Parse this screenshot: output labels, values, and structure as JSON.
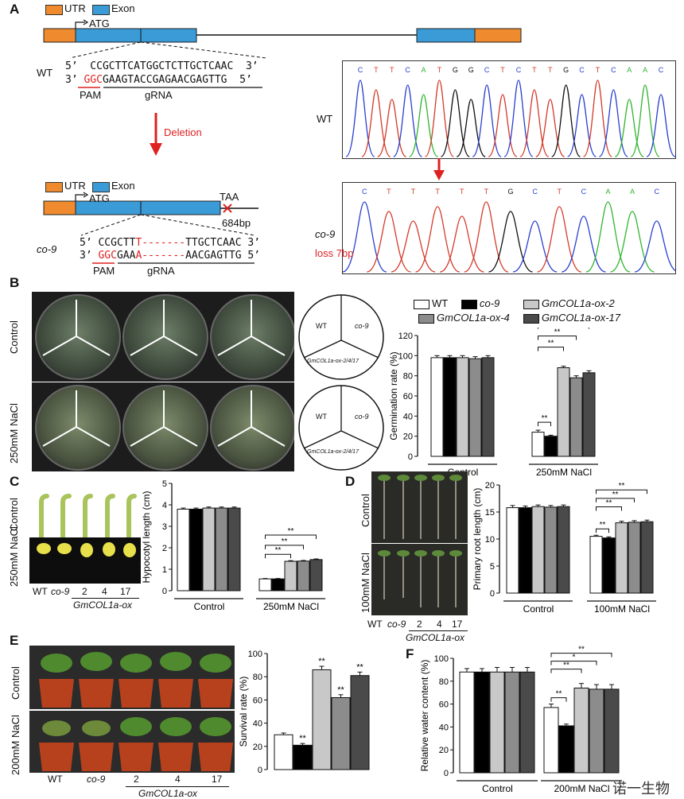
{
  "panel_labels": {
    "a": "A",
    "b": "B",
    "c": "C",
    "d": "D",
    "e": "E",
    "f": "F"
  },
  "gene_legend": {
    "utr": "UTR",
    "exon": "Exon",
    "atg": "ATG",
    "taa": "TAA",
    "bp": "684bp"
  },
  "wt_seq": {
    "label": "WT",
    "top": "5’  CCGCTTCATGGCTCTTGCTCAAC  3’",
    "bot_prefix": "3’ ",
    "pam": "GGC",
    "bot_rest": "GAAGTACCGAGAACGAGTTG  5’",
    "pam_label": "PAM",
    "grna_label": "gRNA"
  },
  "deletion_label": "Deletion",
  "co9_seq": {
    "label": "co-9",
    "top_a": "5’ CCGCTT",
    "top_del": "T-------",
    "top_b": "TTGCTCAAC 3’",
    "bot_prefix": "3’ ",
    "pam": "GGC",
    "bot_mid": "GAA",
    "bot_del": "A-------",
    "bot_rest": "AACGAGTTG 5’",
    "pam_label": "PAM",
    "grna_label": "gRNA"
  },
  "chrom_wt": {
    "label": "WT",
    "bases": [
      "C",
      "T",
      "T",
      "C",
      "A",
      "T",
      "G",
      "G",
      "C",
      "T",
      "C",
      "T",
      "T",
      "G",
      "C",
      "T",
      "C",
      "A",
      "A",
      "C"
    ]
  },
  "chrom_co9": {
    "label": "co-9",
    "loss": "loss 7bp",
    "bases": [
      "C",
      "T",
      "T",
      "T",
      "T",
      "T",
      "G",
      "C",
      "T",
      "C",
      "A",
      "A",
      "C"
    ]
  },
  "base_colors": {
    "A": "#2fb52f",
    "C": "#2a3fcf",
    "G": "#111111",
    "T": "#d33a2a"
  },
  "panel_b": {
    "row_control": "Control",
    "row_nacl": "250mM NaCl",
    "key_wt": "WT",
    "key_co9": "co-9",
    "key_ox": "GmCOL1a-ox-2/4/17"
  },
  "legend": {
    "wt": "WT",
    "co9": "co-9",
    "ox2": "GmCOL1a-ox-2",
    "ox4": "GmCOL1a-ox-4",
    "ox17": "GmCOL1a-ox-17"
  },
  "series_colors": [
    "#ffffff",
    "#000000",
    "#c8c8c8",
    "#8c8c8c",
    "#4a4a4a"
  ],
  "panel_c": {
    "row_control": "Control",
    "row_nacl": "250mM NaCl",
    "axis_wt": "WT",
    "axis_co9": "co-9",
    "axis_2": "2",
    "axis_4": "4",
    "axis_17": "17",
    "ox": "GmCOL1a-ox"
  },
  "panel_d": {
    "row_control": "Control",
    "row_nacl": "100mM NaCl",
    "axis_wt": "WT",
    "axis_co9": "co-9",
    "axis_2": "2",
    "axis_4": "4",
    "axis_17": "17",
    "ox": "GmCOL1a-ox"
  },
  "panel_e": {
    "row_control": "Control",
    "row_nacl": "200mM NaCl",
    "axis_wt": "WT",
    "axis_co9": "co-9",
    "axis_2": "2",
    "axis_4": "4",
    "axis_17": "17",
    "ox": "GmCOL1a-ox"
  },
  "watermark": "诺一生物",
  "chart_data": [
    {
      "id": "germ",
      "type": "bar",
      "ylabel": "Germination rate (%)",
      "ylim": [
        0,
        120
      ],
      "yticks": [
        0,
        20,
        40,
        60,
        80,
        100,
        120
      ],
      "categories": [
        "Control",
        "250mM NaCl"
      ],
      "series": [
        {
          "name": "WT",
          "values": [
            98,
            24
          ]
        },
        {
          "name": "co-9",
          "values": [
            98,
            20
          ]
        },
        {
          "name": "GmCOL1a-ox-2",
          "values": [
            98,
            88
          ]
        },
        {
          "name": "GmCOL1a-ox-4",
          "values": [
            97,
            78
          ]
        },
        {
          "name": "GmCOL1a-ox-17",
          "values": [
            98,
            83
          ]
        }
      ],
      "errors": [
        [
          2,
          2
        ],
        [
          2,
          1
        ],
        [
          2,
          1.5
        ],
        [
          2,
          2
        ],
        [
          2,
          2
        ]
      ],
      "significance": [
        {
          "group": 1,
          "from": 0,
          "to": 1,
          "text": "**"
        },
        {
          "group": 1,
          "from": 0,
          "to": 2,
          "text": "**"
        },
        {
          "group": 1,
          "from": 0,
          "to": 3,
          "text": "**"
        },
        {
          "group": 1,
          "from": 0,
          "to": 4,
          "text": "**"
        }
      ]
    },
    {
      "id": "hypo",
      "type": "bar",
      "ylabel": "Hypocotyl length (cm)",
      "ylim": [
        0,
        5
      ],
      "yticks": [
        0,
        1,
        2,
        3,
        4,
        5
      ],
      "categories": [
        "Control",
        "250mM NaCl"
      ],
      "series": [
        {
          "name": "WT",
          "values": [
            3.8,
            0.55
          ]
        },
        {
          "name": "co-9",
          "values": [
            3.8,
            0.55
          ]
        },
        {
          "name": "GmCOL1a-ox-2",
          "values": [
            3.85,
            1.37
          ]
        },
        {
          "name": "GmCOL1a-ox-4",
          "values": [
            3.85,
            1.38
          ]
        },
        {
          "name": "GmCOL1a-ox-17",
          "values": [
            3.85,
            1.45
          ]
        }
      ],
      "errors": [
        [
          0.05,
          0.02
        ],
        [
          0.05,
          0.02
        ],
        [
          0.05,
          0.03
        ],
        [
          0.05,
          0.03
        ],
        [
          0.05,
          0.03
        ]
      ],
      "significance": [
        {
          "group": 1,
          "from": 0,
          "to": 2,
          "text": "**"
        },
        {
          "group": 1,
          "from": 0,
          "to": 3,
          "text": "**"
        },
        {
          "group": 1,
          "from": 0,
          "to": 4,
          "text": "**"
        }
      ]
    },
    {
      "id": "root",
      "type": "bar",
      "ylabel": "Primary root length (cm)",
      "ylim": [
        0,
        20
      ],
      "yticks": [
        0,
        5,
        10,
        15,
        20
      ],
      "categories": [
        "Control",
        "100mM NaCl"
      ],
      "series": [
        {
          "name": "WT",
          "values": [
            15.8,
            10.5
          ]
        },
        {
          "name": "co-9",
          "values": [
            15.8,
            10.2
          ]
        },
        {
          "name": "GmCOL1a-ox-2",
          "values": [
            16,
            13
          ]
        },
        {
          "name": "GmCOL1a-ox-4",
          "values": [
            15.9,
            13.1
          ]
        },
        {
          "name": "GmCOL1a-ox-17",
          "values": [
            16,
            13.2
          ]
        }
      ],
      "errors": [
        [
          0.4,
          0.2
        ],
        [
          0.3,
          0.2
        ],
        [
          0.3,
          0.3
        ],
        [
          0.3,
          0.3
        ],
        [
          0.3,
          0.3
        ]
      ],
      "significance": [
        {
          "group": 1,
          "from": 0,
          "to": 1,
          "text": "**"
        },
        {
          "group": 1,
          "from": 0,
          "to": 2,
          "text": "**"
        },
        {
          "group": 1,
          "from": 0,
          "to": 3,
          "text": "**"
        },
        {
          "group": 1,
          "from": 0,
          "to": 4,
          "text": "**"
        }
      ]
    },
    {
      "id": "surv",
      "type": "bar",
      "ylabel": "Survival rate (%)",
      "ylim": [
        0,
        100
      ],
      "yticks": [
        0,
        20,
        40,
        60,
        80,
        100
      ],
      "categories": [
        ""
      ],
      "series": [
        {
          "name": "WT",
          "values": [
            30
          ]
        },
        {
          "name": "co-9",
          "values": [
            21
          ]
        },
        {
          "name": "GmCOL1a-ox-2",
          "values": [
            86
          ]
        },
        {
          "name": "GmCOL1a-ox-4",
          "values": [
            62
          ]
        },
        {
          "name": "GmCOL1a-ox-17",
          "values": [
            81
          ]
        }
      ],
      "errors": [
        [
          1.5
        ],
        [
          1.5
        ],
        [
          3
        ],
        [
          2.5
        ],
        [
          3
        ]
      ],
      "stars": [
        null,
        "**",
        "**",
        "**",
        "**"
      ]
    },
    {
      "id": "rwc",
      "type": "bar",
      "ylabel": "Relative water content (%)",
      "ylim": [
        0,
        100
      ],
      "yticks": [
        0,
        20,
        40,
        60,
        80,
        100
      ],
      "categories": [
        "Control",
        "200mM NaCl"
      ],
      "series": [
        {
          "name": "WT",
          "values": [
            88,
            57
          ]
        },
        {
          "name": "co-9",
          "values": [
            88,
            41
          ]
        },
        {
          "name": "GmCOL1a-ox-2",
          "values": [
            88,
            74
          ]
        },
        {
          "name": "GmCOL1a-ox-4",
          "values": [
            88,
            73
          ]
        },
        {
          "name": "GmCOL1a-ox-17",
          "values": [
            88,
            73
          ]
        }
      ],
      "errors": [
        [
          3,
          3
        ],
        [
          3,
          1.5
        ],
        [
          4,
          4
        ],
        [
          4,
          4
        ],
        [
          4,
          4
        ]
      ],
      "significance": [
        {
          "group": 1,
          "from": 0,
          "to": 1,
          "text": "**"
        },
        {
          "group": 1,
          "from": 0,
          "to": 2,
          "text": "**"
        },
        {
          "group": 1,
          "from": 0,
          "to": 3,
          "text": "*"
        },
        {
          "group": 1,
          "from": 0,
          "to": 4,
          "text": "**"
        }
      ]
    }
  ]
}
